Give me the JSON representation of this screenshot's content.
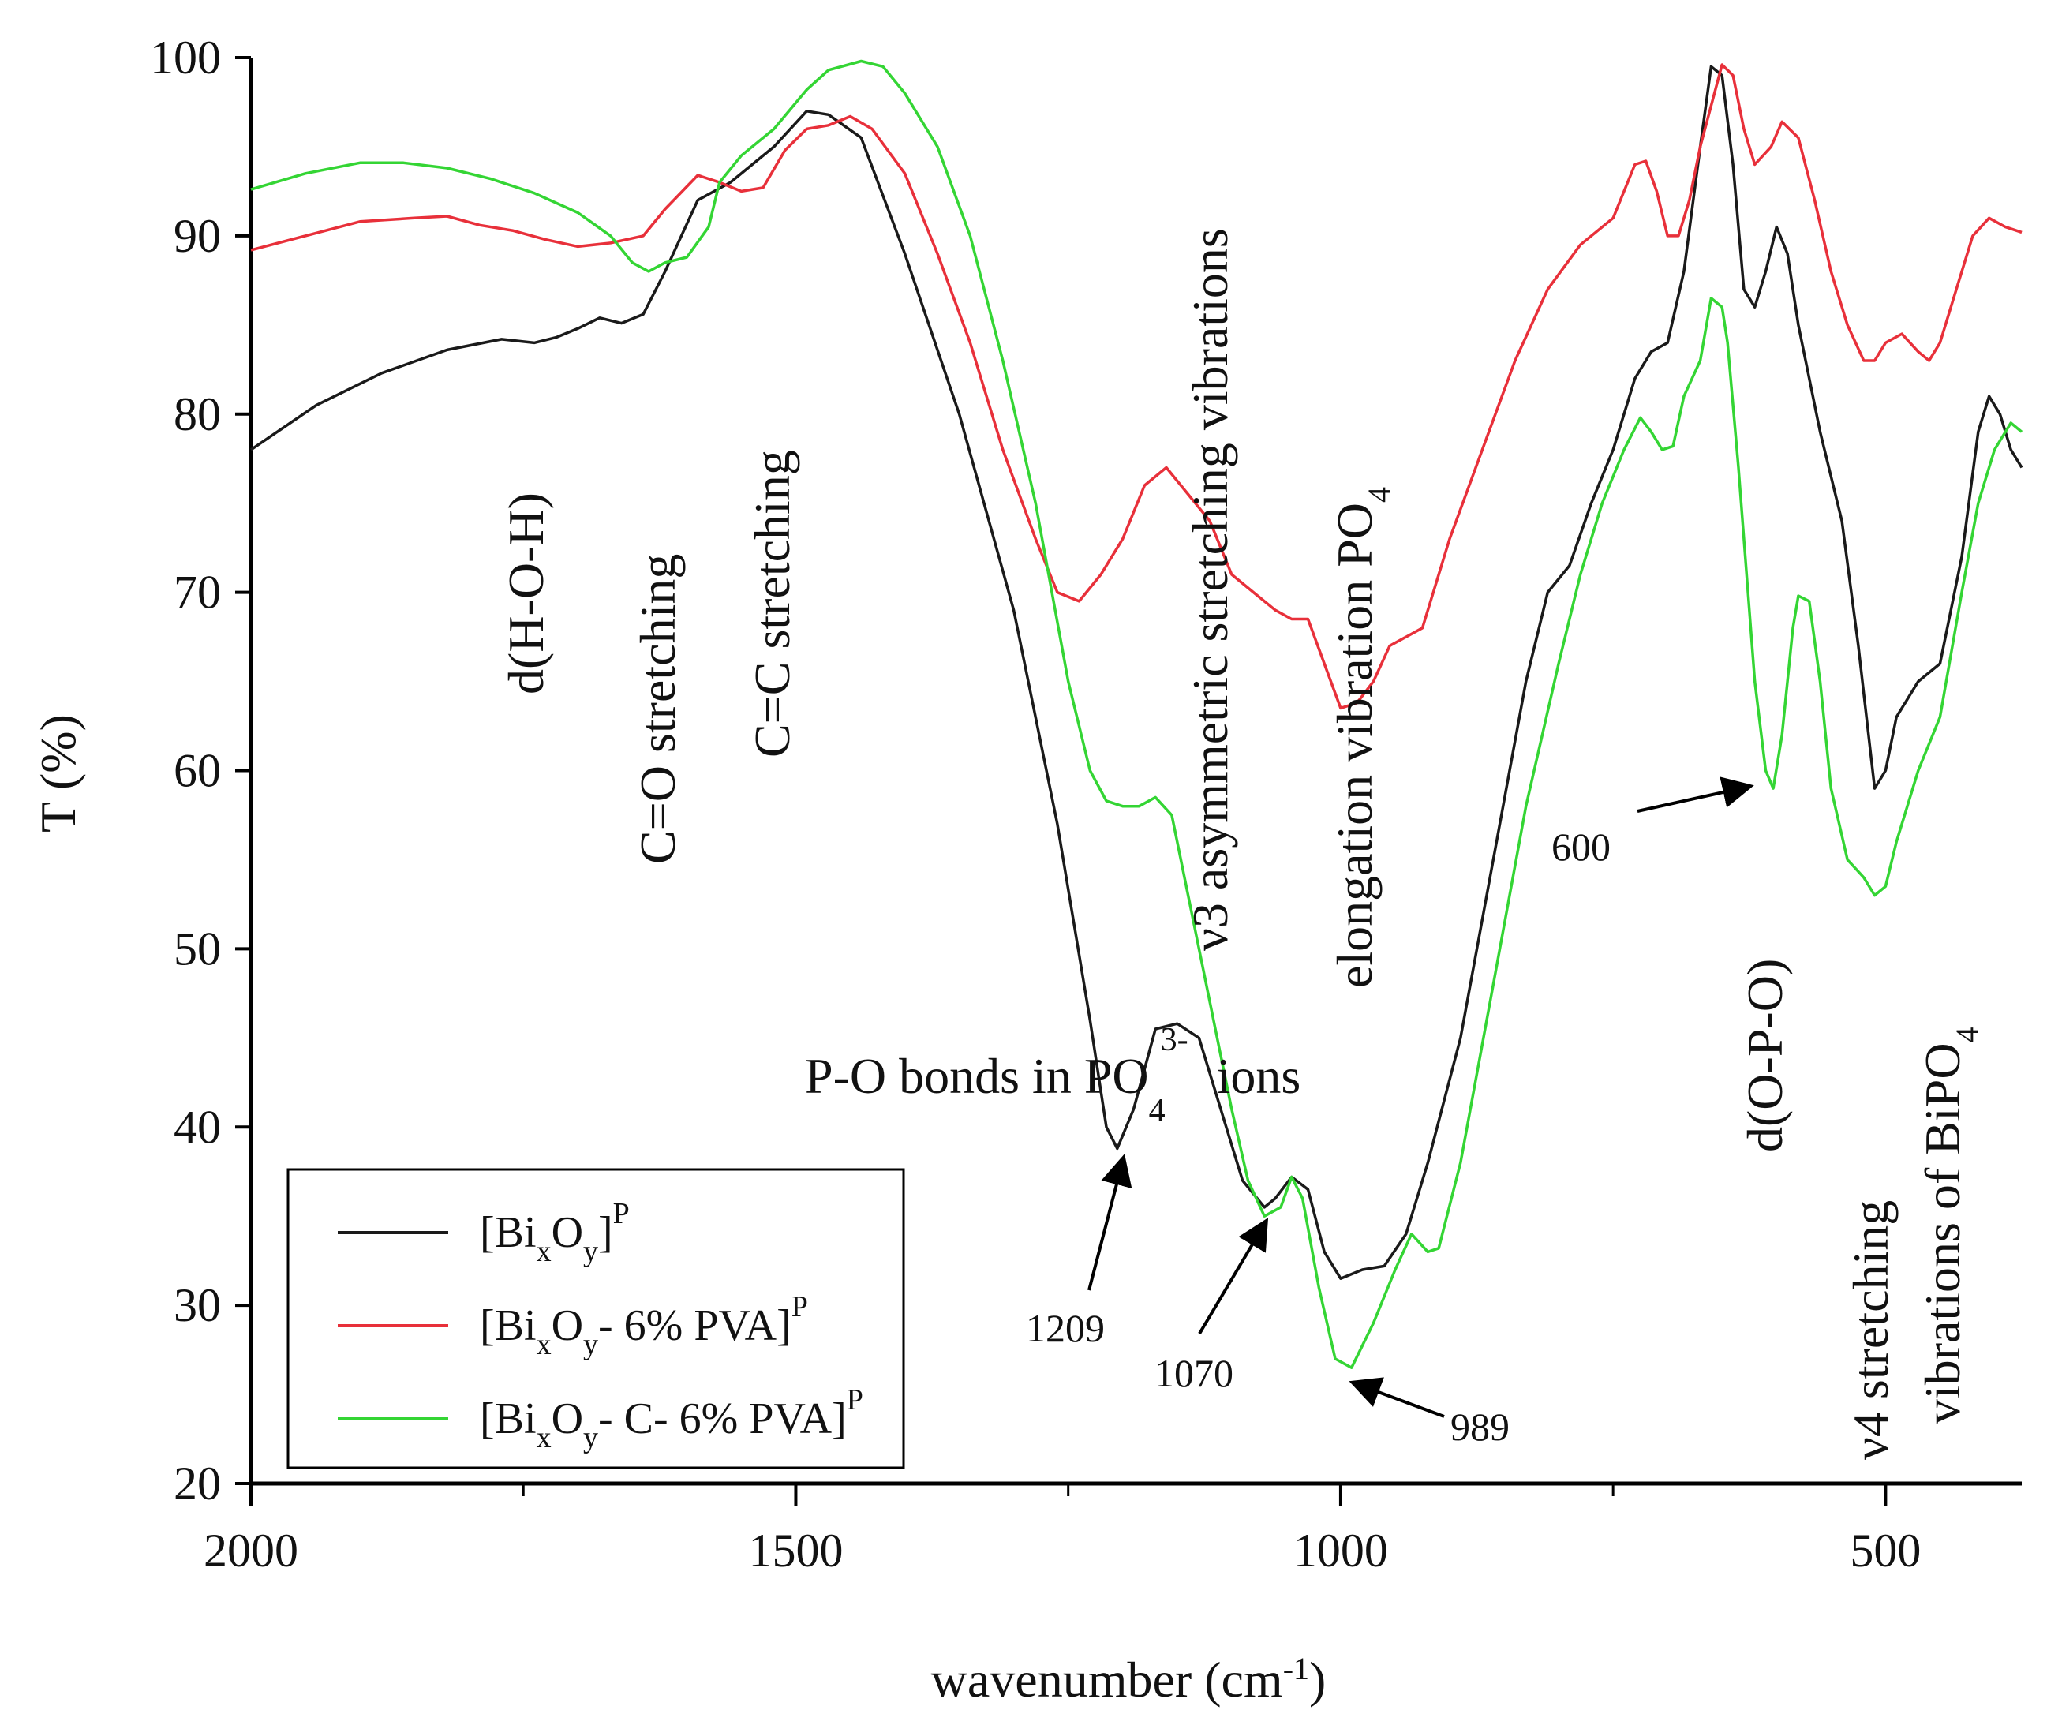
{
  "chart_data": {
    "type": "line",
    "title": "",
    "xlabel": "wavenumber (cm",
    "xlabel_sup": "-1",
    "xlabel_tail": ")",
    "ylabel": "T (%)",
    "xlim": [
      2000,
      375
    ],
    "ylim": [
      20,
      100
    ],
    "x_ticks": [
      2000,
      1500,
      1000,
      500
    ],
    "x_minor_ticks": [
      1750,
      1250,
      750
    ],
    "y_ticks": [
      20,
      30,
      40,
      50,
      60,
      70,
      80,
      90,
      100
    ],
    "series": [
      {
        "name": "[BixOy]P",
        "color": "#1a1a1a",
        "points": [
          [
            2000,
            78
          ],
          [
            1940,
            80.5
          ],
          [
            1880,
            82.3
          ],
          [
            1820,
            83.6
          ],
          [
            1770,
            84.2
          ],
          [
            1740,
            84
          ],
          [
            1720,
            84.3
          ],
          [
            1700,
            84.8
          ],
          [
            1680,
            85.4
          ],
          [
            1660,
            85.1
          ],
          [
            1640,
            85.6
          ],
          [
            1620,
            88
          ],
          [
            1590,
            92
          ],
          [
            1560,
            93
          ],
          [
            1520,
            95
          ],
          [
            1490,
            97
          ],
          [
            1470,
            96.8
          ],
          [
            1440,
            95.5
          ],
          [
            1400,
            89
          ],
          [
            1350,
            80
          ],
          [
            1300,
            69
          ],
          [
            1260,
            57
          ],
          [
            1230,
            46
          ],
          [
            1215,
            40
          ],
          [
            1205,
            38.8
          ],
          [
            1190,
            41
          ],
          [
            1170,
            45.5
          ],
          [
            1150,
            45.8
          ],
          [
            1130,
            45
          ],
          [
            1110,
            41
          ],
          [
            1090,
            37
          ],
          [
            1070,
            35.5
          ],
          [
            1060,
            36
          ],
          [
            1045,
            37.2
          ],
          [
            1030,
            36.5
          ],
          [
            1015,
            33
          ],
          [
            1000,
            31.5
          ],
          [
            980,
            32
          ],
          [
            960,
            32.2
          ],
          [
            940,
            34
          ],
          [
            920,
            38
          ],
          [
            890,
            45
          ],
          [
            860,
            55
          ],
          [
            830,
            65
          ],
          [
            810,
            70
          ],
          [
            790,
            71.5
          ],
          [
            770,
            75
          ],
          [
            750,
            78
          ],
          [
            730,
            82
          ],
          [
            715,
            83.5
          ],
          [
            700,
            84
          ],
          [
            685,
            88
          ],
          [
            670,
            95
          ],
          [
            660,
            99.5
          ],
          [
            650,
            99
          ],
          [
            640,
            94
          ],
          [
            630,
            87
          ],
          [
            620,
            86
          ],
          [
            610,
            88
          ],
          [
            600,
            90.5
          ],
          [
            590,
            89
          ],
          [
            580,
            85
          ],
          [
            560,
            79
          ],
          [
            540,
            74
          ],
          [
            525,
            67
          ],
          [
            510,
            59
          ],
          [
            500,
            60
          ],
          [
            490,
            63
          ],
          [
            470,
            65
          ],
          [
            450,
            66
          ],
          [
            430,
            72
          ],
          [
            415,
            79
          ],
          [
            405,
            81
          ],
          [
            395,
            80
          ],
          [
            385,
            78
          ],
          [
            375,
            77
          ]
        ]
      },
      {
        "name": "[BixOy- 6% PVA]P",
        "color": "#e8303a",
        "points": [
          [
            2000,
            89.2
          ],
          [
            1950,
            90
          ],
          [
            1900,
            90.8
          ],
          [
            1850,
            91
          ],
          [
            1820,
            91.1
          ],
          [
            1790,
            90.6
          ],
          [
            1760,
            90.3
          ],
          [
            1730,
            89.8
          ],
          [
            1700,
            89.4
          ],
          [
            1670,
            89.6
          ],
          [
            1640,
            90
          ],
          [
            1620,
            91.5
          ],
          [
            1590,
            93.4
          ],
          [
            1570,
            93
          ],
          [
            1550,
            92.5
          ],
          [
            1530,
            92.7
          ],
          [
            1510,
            94.8
          ],
          [
            1490,
            96
          ],
          [
            1470,
            96.2
          ],
          [
            1450,
            96.7
          ],
          [
            1430,
            96
          ],
          [
            1400,
            93.5
          ],
          [
            1370,
            89
          ],
          [
            1340,
            84
          ],
          [
            1310,
            78
          ],
          [
            1280,
            73
          ],
          [
            1260,
            70
          ],
          [
            1240,
            69.5
          ],
          [
            1220,
            71
          ],
          [
            1200,
            73
          ],
          [
            1180,
            76
          ],
          [
            1160,
            77
          ],
          [
            1140,
            75.5
          ],
          [
            1120,
            74
          ],
          [
            1100,
            71
          ],
          [
            1080,
            70
          ],
          [
            1060,
            69
          ],
          [
            1045,
            68.5
          ],
          [
            1030,
            68.5
          ],
          [
            1015,
            66
          ],
          [
            1000,
            63.5
          ],
          [
            985,
            63.8
          ],
          [
            970,
            65
          ],
          [
            955,
            67
          ],
          [
            940,
            67.5
          ],
          [
            925,
            68
          ],
          [
            900,
            73
          ],
          [
            870,
            78
          ],
          [
            840,
            83
          ],
          [
            810,
            87
          ],
          [
            780,
            89.5
          ],
          [
            750,
            91
          ],
          [
            730,
            94
          ],
          [
            720,
            94.2
          ],
          [
            710,
            92.5
          ],
          [
            700,
            90
          ],
          [
            690,
            90
          ],
          [
            680,
            92
          ],
          [
            670,
            95
          ],
          [
            650,
            99.6
          ],
          [
            640,
            99
          ],
          [
            630,
            96
          ],
          [
            620,
            94
          ],
          [
            605,
            95
          ],
          [
            595,
            96.4
          ],
          [
            580,
            95.5
          ],
          [
            565,
            92
          ],
          [
            550,
            88
          ],
          [
            535,
            85
          ],
          [
            520,
            83
          ],
          [
            510,
            83
          ],
          [
            500,
            84
          ],
          [
            485,
            84.5
          ],
          [
            470,
            83.5
          ],
          [
            460,
            83
          ],
          [
            450,
            84
          ],
          [
            435,
            87
          ],
          [
            420,
            90
          ],
          [
            405,
            91
          ],
          [
            390,
            90.5
          ],
          [
            375,
            90.2
          ]
        ]
      },
      {
        "name": "[BixOy- C- 6% PVA]P",
        "color": "#34d534",
        "points": [
          [
            2000,
            92.6
          ],
          [
            1950,
            93.5
          ],
          [
            1900,
            94.1
          ],
          [
            1860,
            94.1
          ],
          [
            1820,
            93.8
          ],
          [
            1780,
            93.2
          ],
          [
            1740,
            92.4
          ],
          [
            1700,
            91.3
          ],
          [
            1670,
            90
          ],
          [
            1650,
            88.5
          ],
          [
            1635,
            88
          ],
          [
            1620,
            88.5
          ],
          [
            1600,
            88.8
          ],
          [
            1580,
            90.5
          ],
          [
            1570,
            93
          ],
          [
            1550,
            94.5
          ],
          [
            1520,
            96
          ],
          [
            1490,
            98.2
          ],
          [
            1470,
            99.3
          ],
          [
            1440,
            99.8
          ],
          [
            1420,
            99.5
          ],
          [
            1400,
            98
          ],
          [
            1370,
            95
          ],
          [
            1340,
            90
          ],
          [
            1310,
            83
          ],
          [
            1280,
            75
          ],
          [
            1250,
            65
          ],
          [
            1230,
            60
          ],
          [
            1215,
            58.3
          ],
          [
            1200,
            58
          ],
          [
            1185,
            58
          ],
          [
            1170,
            58.5
          ],
          [
            1155,
            57.5
          ],
          [
            1140,
            53
          ],
          [
            1120,
            47
          ],
          [
            1100,
            41
          ],
          [
            1085,
            37
          ],
          [
            1070,
            35
          ],
          [
            1055,
            35.5
          ],
          [
            1045,
            37.2
          ],
          [
            1035,
            36
          ],
          [
            1020,
            31
          ],
          [
            1005,
            27
          ],
          [
            990,
            26.5
          ],
          [
            970,
            29
          ],
          [
            950,
            32
          ],
          [
            935,
            34
          ],
          [
            920,
            33
          ],
          [
            910,
            33.2
          ],
          [
            890,
            38
          ],
          [
            860,
            48
          ],
          [
            830,
            58
          ],
          [
            800,
            66
          ],
          [
            780,
            71
          ],
          [
            760,
            75
          ],
          [
            740,
            78
          ],
          [
            725,
            79.8
          ],
          [
            715,
            79
          ],
          [
            705,
            78
          ],
          [
            695,
            78.2
          ],
          [
            685,
            81
          ],
          [
            670,
            83
          ],
          [
            660,
            86.5
          ],
          [
            650,
            86
          ],
          [
            645,
            84
          ],
          [
            635,
            77
          ],
          [
            620,
            65
          ],
          [
            610,
            60
          ],
          [
            603,
            59
          ],
          [
            595,
            62
          ],
          [
            585,
            68
          ],
          [
            580,
            69.8
          ],
          [
            570,
            69.5
          ],
          [
            560,
            65
          ],
          [
            550,
            59
          ],
          [
            535,
            55
          ],
          [
            520,
            54
          ],
          [
            510,
            53
          ],
          [
            500,
            53.5
          ],
          [
            490,
            56
          ],
          [
            470,
            60
          ],
          [
            450,
            63
          ],
          [
            430,
            70
          ],
          [
            415,
            75
          ],
          [
            400,
            78
          ],
          [
            385,
            79.5
          ],
          [
            375,
            79
          ]
        ]
      }
    ],
    "annotations": {
      "d_hoh": "d(H-O-H)",
      "co_stretch": "C=O stretching",
      "cc_stretch": "C=C stretching",
      "v3": "ν3 asymmetric stretching vibrations",
      "elongation": "elongation vibration PO",
      "elongation_sub": "4",
      "po_bonds": "P-O bonds in PO",
      "po_bonds_sub": "4",
      "po_bonds_sup": "3-",
      "po_bonds_tail": "ions",
      "d_opo": "d(O-P-O)",
      "v4_line1": "ν4 stretching",
      "v4_line2": "vibrations of BiPO",
      "v4_sub": "4",
      "peak_1209": "1209",
      "peak_1070": "1070",
      "peak_989": "989",
      "peak_600": "600"
    },
    "legend": {
      "position": "bottom-left",
      "entries": [
        {
          "base": "[Bi",
          "sub1": "x",
          "mid": "O",
          "sub2": "y",
          "tail": "]",
          "sup": "P",
          "color": "#1a1a1a"
        },
        {
          "base": "[Bi",
          "sub1": "x",
          "mid": "O",
          "sub2": "y",
          "tail": "- 6% PVA]",
          "sup": "P",
          "color": "#e8303a"
        },
        {
          "base": "[Bi",
          "sub1": "x",
          "mid": "O",
          "sub2": "y",
          "tail": "- C- 6% PVA]",
          "sup": "P",
          "color": "#34d534"
        }
      ]
    }
  }
}
